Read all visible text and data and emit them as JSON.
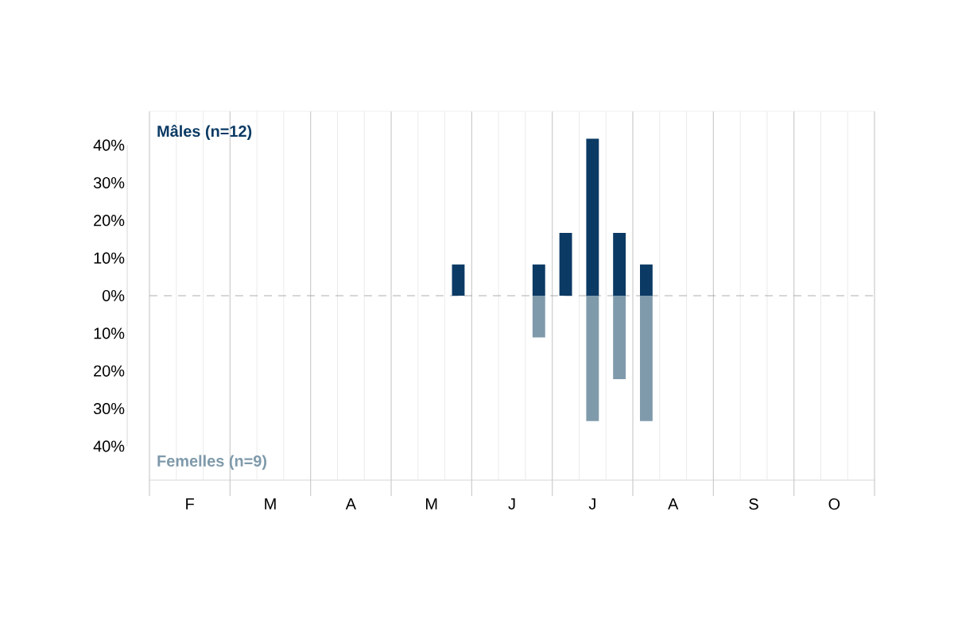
{
  "chart_data": {
    "type": "bar",
    "categories": [
      null,
      "F",
      null,
      null,
      "M",
      null,
      null,
      "A",
      null,
      null,
      "M",
      null,
      null,
      "J",
      null,
      null,
      "J",
      null,
      null,
      "A",
      null,
      null,
      "S",
      null,
      null,
      "O",
      null
    ],
    "series": [
      {
        "name": "Mâles (n=12)",
        "color": "#0b3a64",
        "values": [
          null,
          null,
          null,
          null,
          null,
          null,
          null,
          null,
          null,
          null,
          null,
          8.3,
          null,
          null,
          8.3,
          16.7,
          41.7,
          16.7,
          8.3,
          null,
          null,
          null,
          null,
          null,
          null,
          null,
          null
        ]
      },
      {
        "name": "Femelles (n=9)",
        "color": "#7f9aab",
        "values": [
          null,
          null,
          null,
          null,
          null,
          null,
          null,
          null,
          null,
          null,
          null,
          null,
          null,
          null,
          -11.1,
          null,
          -33.3,
          -22.2,
          -33.3,
          null,
          null,
          null,
          null,
          null,
          null,
          null,
          null
        ]
      }
    ],
    "ylim": [
      -49,
      49
    ],
    "yticks": [
      {
        "value": -40,
        "label": "40%"
      },
      {
        "value": -30,
        "label": "30%"
      },
      {
        "value": -20,
        "label": "20%"
      },
      {
        "value": -10,
        "label": "10%"
      },
      {
        "value": 0,
        "label": "0%"
      },
      {
        "value": 10,
        "label": "10%"
      },
      {
        "value": 20,
        "label": "20%"
      },
      {
        "value": 30,
        "label": "30%"
      },
      {
        "value": 40,
        "label": "40%"
      }
    ],
    "grid": "x",
    "ref_lines": [
      {
        "axis": "y",
        "value": 0,
        "color": "#999999",
        "line_style": "dashed"
      }
    ]
  }
}
